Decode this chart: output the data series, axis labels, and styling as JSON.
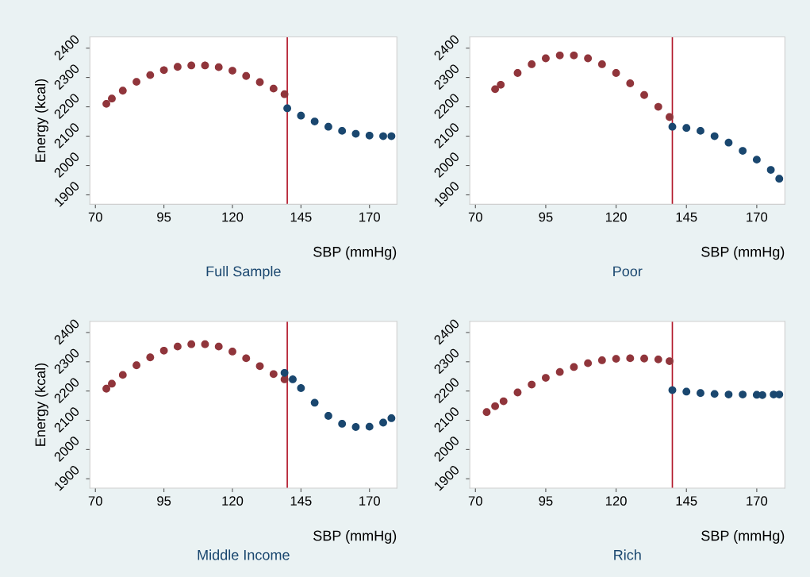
{
  "chart_data": [
    {
      "type": "scatter",
      "title": "Full Sample",
      "xlabel": "SBP (mmHg)",
      "ylabel": "Energy (kcal)",
      "xlim": [
        68,
        180
      ],
      "ylim": [
        1868,
        2438
      ],
      "xticks": [
        70,
        95,
        120,
        145,
        170
      ],
      "yticks": [
        1900,
        2000,
        2100,
        2200,
        2300,
        2400
      ],
      "grid": false,
      "marker": "circle",
      "ref_lines": [
        {
          "axis": "x",
          "value": 140,
          "color": "#b2182b"
        }
      ],
      "series": [
        {
          "color": "#90353b",
          "x": [
            74,
            76,
            80,
            85,
            90,
            95,
            100,
            105,
            110,
            115,
            120,
            125,
            130,
            135,
            139
          ],
          "values": [
            2210,
            2228,
            2255,
            2285,
            2308,
            2325,
            2336,
            2341,
            2341,
            2335,
            2323,
            2305,
            2284,
            2262,
            2243
          ]
        },
        {
          "color": "#1a476f",
          "x": [
            140,
            145,
            150,
            155,
            160,
            165,
            170,
            175,
            178
          ],
          "values": [
            2195,
            2170,
            2150,
            2132,
            2118,
            2108,
            2102,
            2100,
            2100
          ]
        }
      ]
    },
    {
      "type": "scatter",
      "title": "Poor",
      "xlabel": "SBP (mmHg)",
      "xlim": [
        68,
        180
      ],
      "ylim": [
        1868,
        2438
      ],
      "xticks": [
        70,
        95,
        120,
        145,
        170
      ],
      "yticks": [
        1900,
        2000,
        2100,
        2200,
        2300,
        2400
      ],
      "grid": false,
      "marker": "circle",
      "ref_lines": [
        {
          "axis": "x",
          "value": 140,
          "color": "#b2182b"
        }
      ],
      "series": [
        {
          "color": "#90353b",
          "x": [
            77,
            79,
            85,
            90,
            95,
            100,
            105,
            110,
            115,
            120,
            125,
            130,
            135,
            139
          ],
          "values": [
            2260,
            2275,
            2315,
            2345,
            2365,
            2375,
            2375,
            2365,
            2345,
            2315,
            2280,
            2240,
            2200,
            2165
          ]
        },
        {
          "color": "#1a476f",
          "x": [
            140,
            145,
            150,
            155,
            160,
            165,
            170,
            175,
            178
          ],
          "values": [
            2132,
            2128,
            2118,
            2100,
            2078,
            2050,
            2020,
            1985,
            1955
          ]
        }
      ]
    },
    {
      "type": "scatter",
      "title": "Middle Income",
      "xlabel": "SBP (mmHg)",
      "ylabel": "Energy (kcal)",
      "xlim": [
        68,
        180
      ],
      "ylim": [
        1868,
        2438
      ],
      "xticks": [
        70,
        95,
        120,
        145,
        170
      ],
      "yticks": [
        1900,
        2000,
        2100,
        2200,
        2300,
        2400
      ],
      "grid": false,
      "marker": "circle",
      "ref_lines": [
        {
          "axis": "x",
          "value": 140,
          "color": "#b2182b"
        }
      ],
      "series": [
        {
          "color": "#90353b",
          "x": [
            74,
            76,
            80,
            85,
            90,
            95,
            100,
            105,
            110,
            115,
            120,
            125,
            130,
            135,
            139
          ],
          "values": [
            2208,
            2225,
            2255,
            2288,
            2315,
            2338,
            2352,
            2360,
            2360,
            2352,
            2335,
            2312,
            2285,
            2258,
            2240
          ]
        },
        {
          "color": "#1a476f",
          "x": [
            139,
            142,
            145,
            150,
            155,
            160,
            165,
            170,
            175,
            178
          ],
          "values": [
            2262,
            2240,
            2210,
            2160,
            2115,
            2088,
            2077,
            2078,
            2092,
            2107
          ]
        }
      ]
    },
    {
      "type": "scatter",
      "title": "Rich",
      "xlabel": "SBP (mmHg)",
      "xlim": [
        68,
        180
      ],
      "ylim": [
        1868,
        2438
      ],
      "xticks": [
        70,
        95,
        120,
        145,
        170
      ],
      "yticks": [
        1900,
        2000,
        2100,
        2200,
        2300,
        2400
      ],
      "grid": false,
      "marker": "circle",
      "ref_lines": [
        {
          "axis": "x",
          "value": 140,
          "color": "#b2182b"
        }
      ],
      "series": [
        {
          "color": "#90353b",
          "x": [
            74,
            77,
            80,
            85,
            90,
            95,
            100,
            105,
            110,
            115,
            120,
            125,
            130,
            135,
            139
          ],
          "values": [
            2128,
            2148,
            2165,
            2195,
            2222,
            2245,
            2265,
            2282,
            2295,
            2305,
            2310,
            2312,
            2311,
            2308,
            2302
          ]
        },
        {
          "color": "#1a476f",
          "x": [
            140,
            145,
            150,
            155,
            160,
            165,
            170,
            172,
            176,
            178
          ],
          "values": [
            2203,
            2198,
            2193,
            2190,
            2188,
            2188,
            2187,
            2186,
            2188,
            2188
          ]
        }
      ]
    }
  ]
}
